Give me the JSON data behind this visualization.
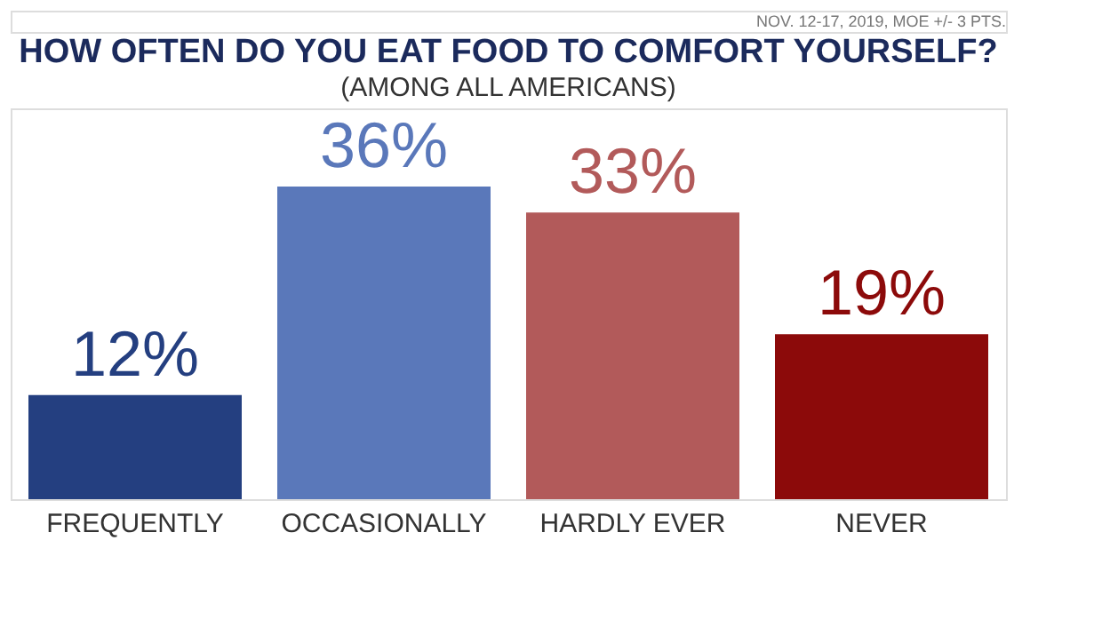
{
  "chart_data": {
    "type": "bar",
    "title": "HOW OFTEN DO YOU EAT FOOD TO COMFORT YOURSELF?",
    "subtitle": "(AMONG ALL AMERICANS)",
    "annotations": [
      "NOV. 12-17, 2019, MOE +/- 3 PTS."
    ],
    "categories": [
      "FREQUENTLY",
      "OCCASIONALLY",
      "HARDLY EVER",
      "NEVER"
    ],
    "values": [
      12,
      36,
      33,
      19
    ],
    "colors": [
      "#243f80",
      "#5a78ba",
      "#b25a5a",
      "#8c0a0a"
    ],
    "value_labels": [
      "12%",
      "36%",
      "33%",
      "19%"
    ]
  }
}
